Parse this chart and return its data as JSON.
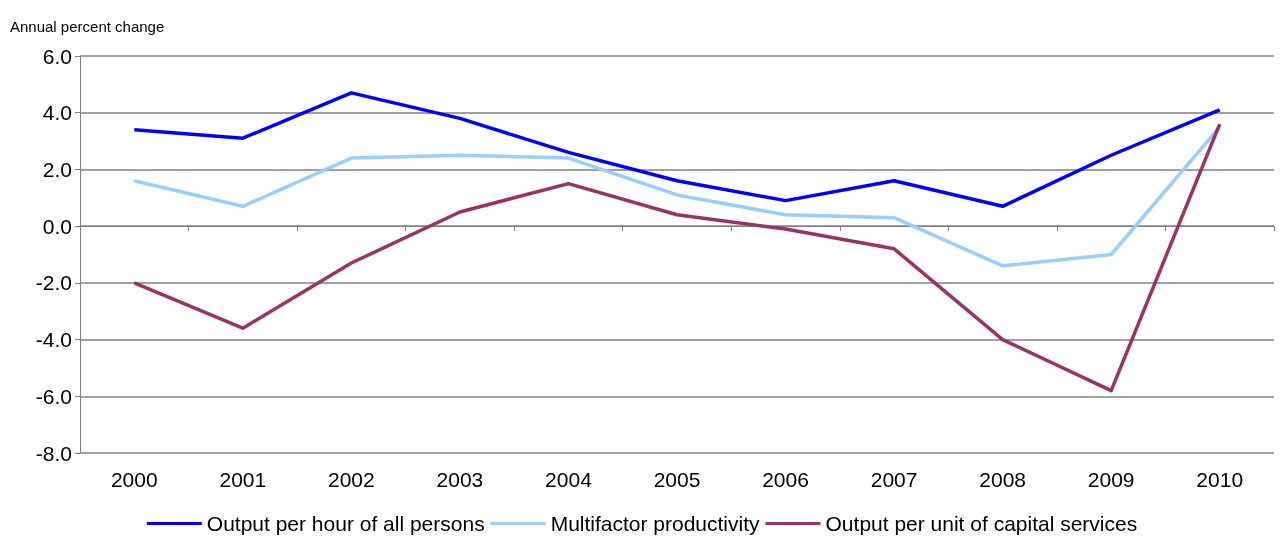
{
  "chart_data": {
    "type": "line",
    "ylabel": "Annual percent change",
    "categories": [
      "2000",
      "2001",
      "2002",
      "2003",
      "2004",
      "2005",
      "2006",
      "2007",
      "2008",
      "2009",
      "2010"
    ],
    "series": [
      {
        "name": "Output per hour of all persons",
        "color": "#0000ff",
        "values": [
          3.4,
          3.1,
          4.7,
          3.8,
          2.6,
          1.6,
          0.9,
          1.6,
          0.7,
          2.5,
          4.1
        ]
      },
      {
        "name": "Multifactor productivity",
        "color": "#99ccff",
        "values": [
          1.6,
          0.7,
          2.4,
          2.5,
          2.4,
          1.1,
          0.4,
          0.3,
          -1.4,
          -1.0,
          3.5
        ]
      },
      {
        "name": "Output per unit of capital services",
        "color": "#993366",
        "values": [
          -2.0,
          -3.6,
          -1.3,
          0.5,
          1.5,
          0.4,
          -0.1,
          -0.8,
          -4.0,
          -5.8,
          3.6
        ]
      }
    ],
    "ylim": [
      -8,
      6
    ],
    "yticks": [
      {
        "value": -8,
        "label": "-8.0"
      },
      {
        "value": -6,
        "label": "-6.0"
      },
      {
        "value": -4,
        "label": "-4.0"
      },
      {
        "value": -2,
        "label": "-2.0"
      },
      {
        "value": 0,
        "label": "0.0"
      },
      {
        "value": 2,
        "label": "2.0"
      },
      {
        "value": 4,
        "label": "4.0"
      },
      {
        "value": 6,
        "label": "6.0"
      }
    ],
    "grid": "y",
    "legend": "bottom",
    "marker": "none",
    "line_style": "solid"
  }
}
